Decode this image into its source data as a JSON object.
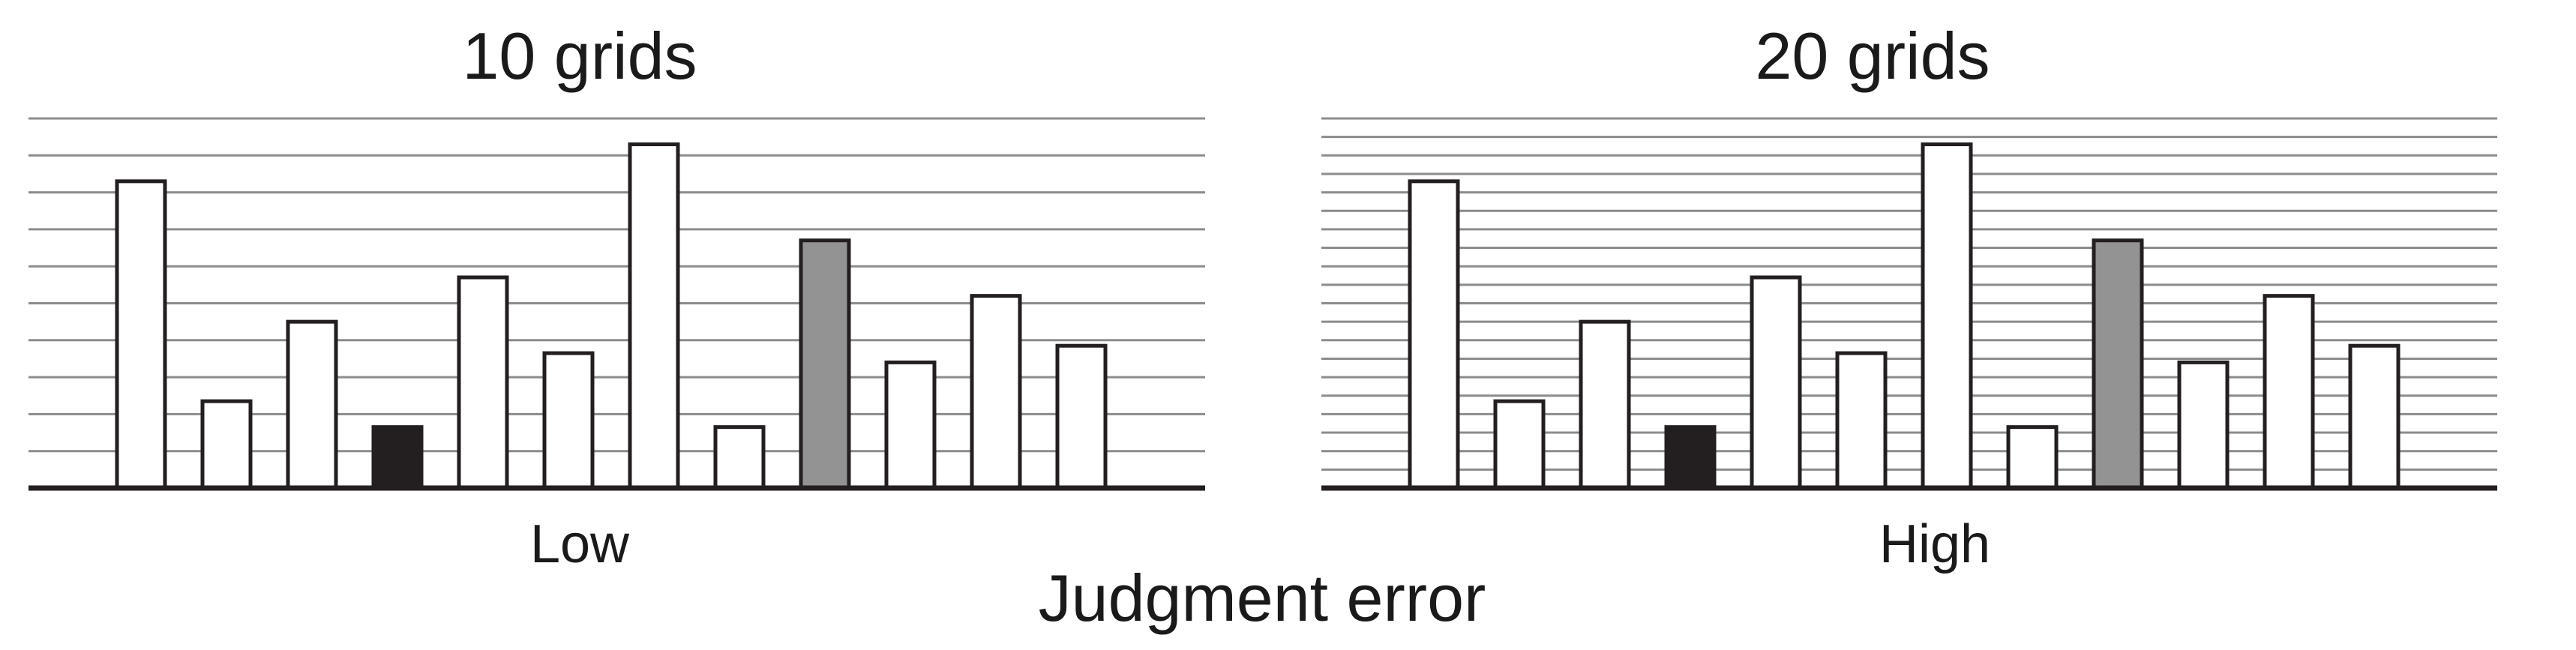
{
  "xlabel": "Judgment error",
  "chart_data": [
    {
      "type": "bar",
      "title": "10 grids",
      "category_label": "Low",
      "grid_lines": 10,
      "ylim": [
        0,
        10
      ],
      "values": [
        8.3,
        2.35,
        4.5,
        1.65,
        5.7,
        3.65,
        9.3,
        1.65,
        6.7,
        3.4,
        5.2,
        3.85
      ],
      "fills": [
        "#ffffff",
        "#ffffff",
        "#ffffff",
        "#231f20",
        "#ffffff",
        "#ffffff",
        "#ffffff",
        "#ffffff",
        "#939393",
        "#ffffff",
        "#ffffff",
        "#ffffff"
      ],
      "grid": true
    },
    {
      "type": "bar",
      "title": "20 grids",
      "category_label": "High",
      "grid_lines": 20,
      "ylim": [
        0,
        10
      ],
      "values": [
        8.3,
        2.35,
        4.5,
        1.65,
        5.7,
        3.65,
        9.3,
        1.65,
        6.7,
        3.4,
        5.2,
        3.85
      ],
      "fills": [
        "#ffffff",
        "#ffffff",
        "#ffffff",
        "#231f20",
        "#ffffff",
        "#ffffff",
        "#ffffff",
        "#ffffff",
        "#939393",
        "#ffffff",
        "#ffffff",
        "#ffffff"
      ],
      "grid": true
    }
  ],
  "colors": {
    "bar_outline": "#231f20",
    "grid": "#8c8c8c",
    "axis": "#231f20"
  }
}
